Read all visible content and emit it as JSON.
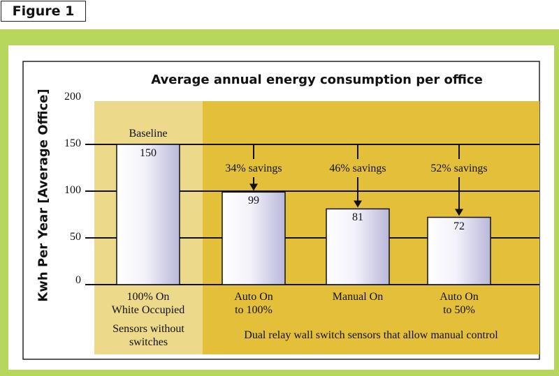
{
  "figure_label": "Figure 1",
  "chart_data": {
    "type": "bar",
    "title": "Average annual energy consumption per office",
    "y_label": "Kwh Per Year [Average Office]",
    "categories": [
      "100% On\nWhite Occupied",
      "Auto On\nto 100%",
      "Manual On",
      "Auto On\nto 50%"
    ],
    "values": [
      150,
      99,
      81,
      72
    ],
    "annotations": [
      "Baseline",
      "34% savings",
      "46% savings",
      "52% savings"
    ],
    "groups": [
      "Sensors without\nswitches",
      "Dual relay wall switch sensors that allow manual control"
    ],
    "ylim": [
      0,
      200
    ],
    "yticks": [
      0,
      50,
      100,
      150,
      200
    ],
    "grid": true
  }
}
